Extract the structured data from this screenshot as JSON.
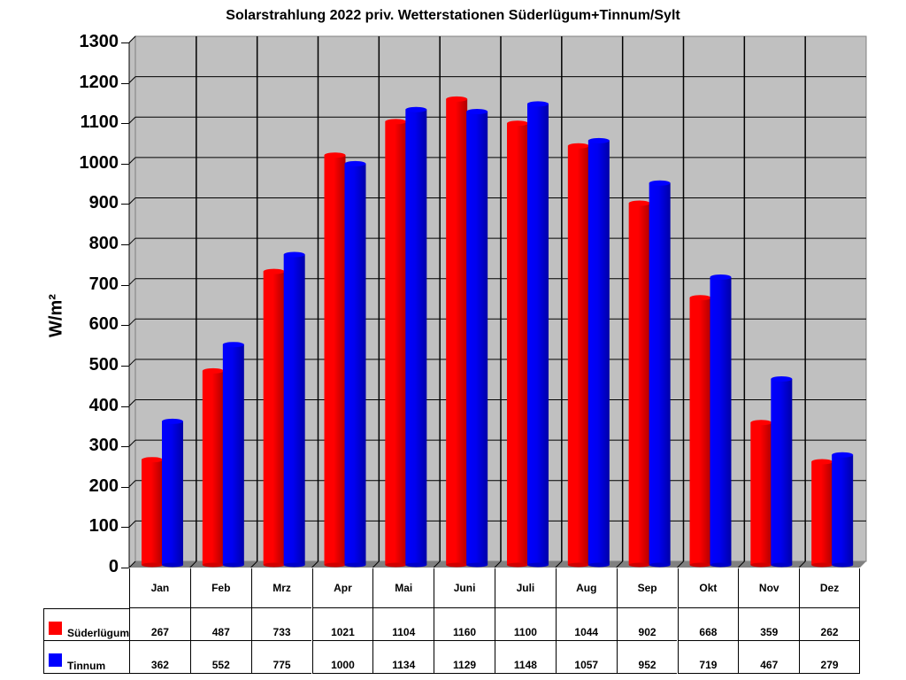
{
  "chart_data": {
    "type": "bar",
    "title": "Solarstrahlung 2022 priv. Wetterstationen Süderlügum+Tinnum/Sylt",
    "xlabel": "",
    "ylabel": "W/m²",
    "ylim": [
      0,
      1300
    ],
    "yticks": [
      0,
      100,
      200,
      300,
      400,
      500,
      600,
      700,
      800,
      900,
      1000,
      1100,
      1200,
      1300
    ],
    "grid": true,
    "legend_position": "data-table-left",
    "style": "3d-cylinder",
    "categories": [
      "Jan",
      "Feb",
      "Mrz",
      "Apr",
      "Mai",
      "Juni",
      "Juli",
      "Aug",
      "Sep",
      "Okt",
      "Nov",
      "Dez"
    ],
    "series": [
      {
        "name": "Süderlügum",
        "color": "#ff0000",
        "values": [
          267,
          487,
          733,
          1021,
          1104,
          1160,
          1100,
          1044,
          902,
          668,
          359,
          262
        ]
      },
      {
        "name": "Tinnum",
        "color": "#0000ff",
        "values": [
          362,
          552,
          775,
          1000,
          1134,
          1129,
          1148,
          1057,
          952,
          719,
          467,
          279
        ]
      }
    ]
  },
  "colors": {
    "wall": "#c0c0c0",
    "floor": "#808080",
    "grid": "#000000"
  }
}
